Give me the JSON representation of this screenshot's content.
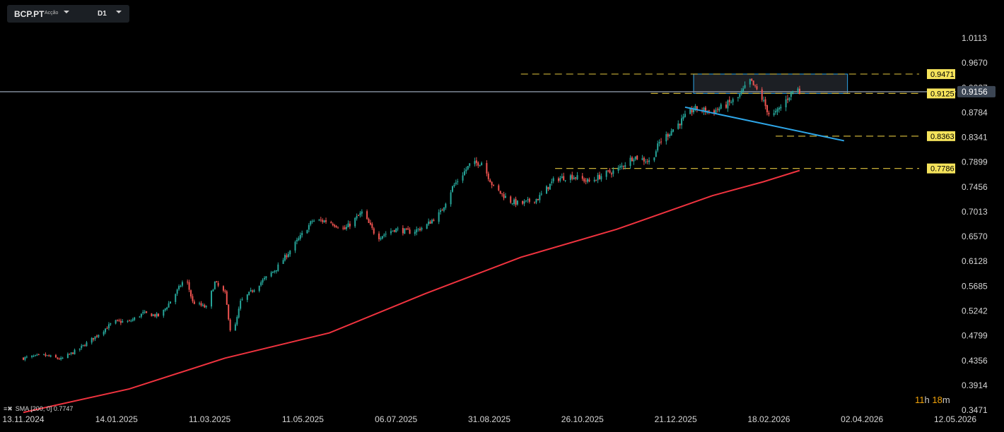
{
  "toolbar": {
    "symbol": "BCP.PT",
    "symbol_type": "Acção",
    "timeframe": "D1"
  },
  "timer": {
    "hours": "11",
    "h_unit": "h",
    "minutes": "18",
    "m_unit": "m"
  },
  "sma_legend": "SMA [200, 0] 0.7747",
  "colors": {
    "background": "#000000",
    "up_candle": "#26a69a",
    "down_candle": "#ef5350",
    "sma": "#f0333f",
    "level_line": "#c9b037",
    "level_label_bg": "#f5e35b",
    "price_line": "#8a96a6",
    "trendline": "#2ea6e8",
    "timer": "#f0a20a"
  },
  "chart_data": {
    "type": "candlestick",
    "symbol": "BCP.PT",
    "timeframe": "D1",
    "y_ticks": [
      1.0113,
      0.967,
      0.9227,
      0.8784,
      0.8341,
      0.7899,
      0.7456,
      0.7013,
      0.657,
      0.6128,
      0.5685,
      0.5242,
      0.4799,
      0.4356,
      0.3914,
      0.3471
    ],
    "y_tick_labels": [
      "1.0113",
      "0.9670",
      "0.9227",
      "0.8784",
      "0.8341",
      "0.7899",
      "0.7456",
      "0.7013",
      "0.6570",
      "0.6128",
      "0.5685",
      "0.5242",
      "0.4799",
      "0.4356",
      "0.3914",
      "0.3471"
    ],
    "ylim": [
      0.335,
      1.035
    ],
    "x_ticks": [
      "13.11.2024",
      "14.01.2025",
      "11.03.2025",
      "11.05.2025",
      "06.07.2025",
      "31.08.2025",
      "26.10.2025",
      "21.12.2025",
      "18.02.2026",
      "02.04.2026",
      "12.05.2026"
    ],
    "close_path": [
      [
        "2024-11-13",
        0.44
      ],
      [
        "2024-11-25",
        0.445
      ],
      [
        "2024-12-05",
        0.438
      ],
      [
        "2024-12-15",
        0.455
      ],
      [
        "2024-12-25",
        0.478
      ],
      [
        "2025-01-05",
        0.505
      ],
      [
        "2025-01-14",
        0.505
      ],
      [
        "2025-01-22",
        0.52
      ],
      [
        "2025-02-01",
        0.515
      ],
      [
        "2025-02-10",
        0.555
      ],
      [
        "2025-02-16",
        0.585
      ],
      [
        "2025-02-20",
        0.54
      ],
      [
        "2025-02-28",
        0.53
      ],
      [
        "2025-03-05",
        0.575
      ],
      [
        "2025-03-11",
        0.555
      ],
      [
        "2025-03-15",
        0.47
      ],
      [
        "2025-03-20",
        0.54
      ],
      [
        "2025-03-30",
        0.57
      ],
      [
        "2025-04-10",
        0.6
      ],
      [
        "2025-04-20",
        0.64
      ],
      [
        "2025-05-01",
        0.685
      ],
      [
        "2025-05-10",
        0.685
      ],
      [
        "2025-05-20",
        0.67
      ],
      [
        "2025-05-30",
        0.7
      ],
      [
        "2025-06-08",
        0.655
      ],
      [
        "2025-06-18",
        0.67
      ],
      [
        "2025-06-28",
        0.665
      ],
      [
        "2025-07-06",
        0.675
      ],
      [
        "2025-07-15",
        0.7
      ],
      [
        "2025-07-22",
        0.745
      ],
      [
        "2025-08-01",
        0.785
      ],
      [
        "2025-08-08",
        0.79
      ],
      [
        "2025-08-15",
        0.745
      ],
      [
        "2025-08-25",
        0.72
      ],
      [
        "2025-08-31",
        0.715
      ],
      [
        "2025-09-10",
        0.725
      ],
      [
        "2025-09-20",
        0.76
      ],
      [
        "2025-09-30",
        0.765
      ],
      [
        "2025-10-10",
        0.755
      ],
      [
        "2025-10-20",
        0.77
      ],
      [
        "2025-10-26",
        0.775
      ],
      [
        "2025-11-05",
        0.8
      ],
      [
        "2025-11-15",
        0.79
      ],
      [
        "2025-11-20",
        0.825
      ],
      [
        "2025-11-30",
        0.855
      ],
      [
        "2025-12-10",
        0.885
      ],
      [
        "2025-12-21",
        0.88
      ],
      [
        "2025-12-28",
        0.89
      ],
      [
        "2026-01-05",
        0.905
      ],
      [
        "2026-01-12",
        0.935
      ],
      [
        "2026-01-18",
        0.91
      ],
      [
        "2026-01-24",
        0.87
      ],
      [
        "2026-01-28",
        0.88
      ],
      [
        "2026-02-03",
        0.905
      ],
      [
        "2026-02-08",
        0.925
      ],
      [
        "2026-02-10",
        0.915
      ]
    ],
    "sma": {
      "name": "SMA [200, 0] 0.7747",
      "points": [
        [
          "2024-11-13",
          0.343
        ],
        [
          "2025-01-14",
          0.385
        ],
        [
          "2025-03-11",
          0.44
        ],
        [
          "2025-05-11",
          0.485
        ],
        [
          "2025-07-06",
          0.555
        ],
        [
          "2025-08-31",
          0.62
        ],
        [
          "2025-10-26",
          0.67
        ],
        [
          "2025-12-21",
          0.73
        ],
        [
          "2026-01-20",
          0.755
        ],
        [
          "2026-02-10",
          0.775
        ]
      ]
    },
    "levels": [
      {
        "label": "0.9471",
        "value": 0.9471,
        "from": "2025-08-31"
      },
      {
        "label": "0.9125",
        "value": 0.9125,
        "from": "2025-11-15"
      },
      {
        "label": "0.8363",
        "value": 0.8363,
        "from": "2026-01-27"
      },
      {
        "label": "0.7786",
        "value": 0.7786,
        "from": "2025-09-20"
      }
    ],
    "current_price": {
      "label": "0.9156",
      "value": 0.9156
    },
    "trendline": [
      [
        "2025-12-05",
        0.888
      ],
      [
        "2026-03-08",
        0.828
      ]
    ],
    "zone": {
      "from": "2025-12-10",
      "to": "2026-03-10",
      "low": 0.9125,
      "high": 0.9471
    }
  }
}
